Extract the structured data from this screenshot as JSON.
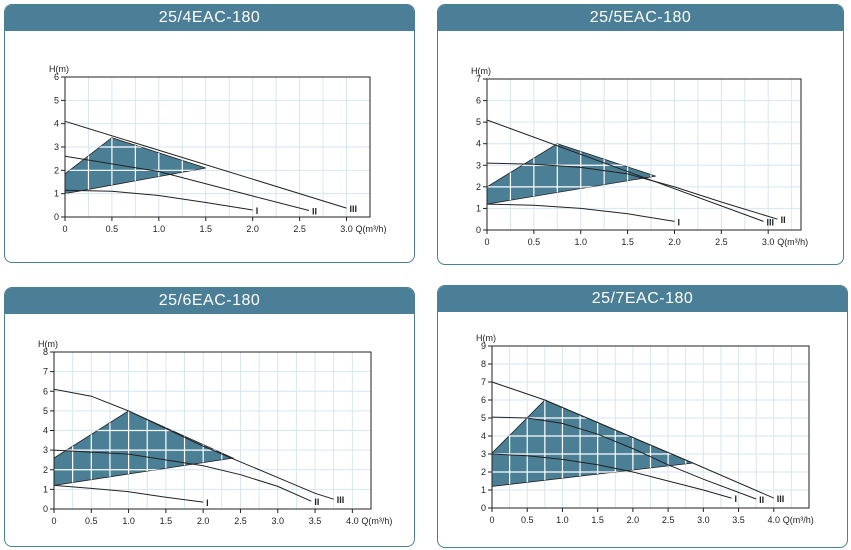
{
  "chart_data": [
    {
      "type": "line",
      "title": "25/4EAC-180",
      "ylabel": "H(m)",
      "xlabel": "Q(m³/h)",
      "xlim": [
        0,
        3.25
      ],
      "ylim": [
        0,
        6
      ],
      "xticks": [
        "0",
        "0.5",
        "1.0",
        "1.5",
        "2.0",
        "2.5",
        "3.0"
      ],
      "yticks": [
        "0",
        "1",
        "2",
        "3",
        "4",
        "5",
        "6"
      ],
      "series": [
        {
          "name": "I",
          "points": [
            [
              0,
              1.15
            ],
            [
              0.5,
              1.1
            ],
            [
              1.0,
              0.92
            ],
            [
              1.5,
              0.62
            ],
            [
              2.0,
              0.3
            ]
          ]
        },
        {
          "name": "II",
          "points": [
            [
              0,
              2.6
            ],
            [
              1.0,
              1.95
            ],
            [
              2.0,
              0.9
            ],
            [
              2.6,
              0.28
            ]
          ]
        },
        {
          "name": "III",
          "points": [
            [
              0,
              4.1
            ],
            [
              3.0,
              0.38
            ]
          ]
        }
      ],
      "region": [
        [
          0,
          1.0
        ],
        [
          0,
          1.85
        ],
        [
          0.5,
          3.4
        ],
        [
          1.5,
          2.1
        ]
      ]
    },
    {
      "type": "line",
      "title": "25/5EAC-180",
      "ylabel": "H(m)",
      "xlabel": "Q(m³/h)",
      "xlim": [
        0,
        3.35
      ],
      "ylim": [
        0,
        7
      ],
      "xticks": [
        "0",
        "0.5",
        "1.0",
        "1.5",
        "2.0",
        "2.5",
        "3.0"
      ],
      "yticks": [
        "0",
        "1",
        "2",
        "3",
        "4",
        "5",
        "6",
        "7"
      ],
      "series": [
        {
          "name": "I",
          "points": [
            [
              0,
              1.2
            ],
            [
              0.5,
              1.15
            ],
            [
              1.0,
              1.0
            ],
            [
              1.5,
              0.75
            ],
            [
              2.0,
              0.4
            ]
          ]
        },
        {
          "name": "II",
          "points": [
            [
              0,
              3.1
            ],
            [
              0.5,
              3.05
            ],
            [
              1.0,
              2.9
            ],
            [
              1.5,
              2.6
            ],
            [
              2.0,
              2.0
            ],
            [
              2.5,
              1.3
            ],
            [
              3.1,
              0.5
            ]
          ]
        },
        {
          "name": "III",
          "points": [
            [
              0,
              5.1
            ],
            [
              2.95,
              0.4
            ]
          ]
        }
      ],
      "region": [
        [
          0,
          1.2
        ],
        [
          0,
          2.0
        ],
        [
          0.75,
          4.0
        ],
        [
          1.8,
          2.5
        ]
      ]
    },
    {
      "type": "line",
      "title": "25/6EAC-180",
      "ylabel": "H(m)",
      "xlabel": "Q(m³/h)",
      "xlim": [
        0,
        4.25
      ],
      "ylim": [
        0,
        8
      ],
      "xticks": [
        "0",
        "0.5",
        "1.0",
        "1.5",
        "2.0",
        "2.5",
        "3.0",
        "3.5",
        "4.0"
      ],
      "yticks": [
        "0",
        "1",
        "2",
        "3",
        "4",
        "5",
        "6",
        "7",
        "8"
      ],
      "series": [
        {
          "name": "I",
          "points": [
            [
              0,
              1.2
            ],
            [
              0.5,
              1.05
            ],
            [
              1.0,
              0.88
            ],
            [
              1.5,
              0.6
            ],
            [
              2.0,
              0.35
            ]
          ]
        },
        {
          "name": "II",
          "points": [
            [
              0,
              3.0
            ],
            [
              1.0,
              2.8
            ],
            [
              2.0,
              2.2
            ],
            [
              2.5,
              1.75
            ],
            [
              3.0,
              1.15
            ],
            [
              3.45,
              0.4
            ]
          ]
        },
        {
          "name": "III",
          "points": [
            [
              0,
              6.1
            ],
            [
              0.5,
              5.75
            ],
            [
              1.0,
              5.0
            ],
            [
              1.5,
              4.1
            ],
            [
              2.0,
              3.2
            ],
            [
              2.5,
              2.4
            ],
            [
              3.0,
              1.6
            ],
            [
              3.5,
              0.8
            ],
            [
              3.75,
              0.5
            ]
          ]
        }
      ],
      "region": [
        [
          0,
          1.2
        ],
        [
          0,
          2.6
        ],
        [
          1.0,
          5.0
        ],
        [
          2.4,
          2.6
        ]
      ]
    },
    {
      "type": "line",
      "title": "25/7EAC-180",
      "ylabel": "H(m)",
      "xlabel": "Q(m³/h)",
      "xlim": [
        0,
        4.5
      ],
      "ylim": [
        0,
        9
      ],
      "xticks": [
        "0",
        "0.5",
        "1.0",
        "1.5",
        "2.0",
        "2.5",
        "3.0",
        "3.5",
        "4.0"
      ],
      "yticks": [
        "0",
        "1",
        "2",
        "3",
        "4",
        "5",
        "6",
        "7",
        "8",
        "9"
      ],
      "series": [
        {
          "name": "I",
          "points": [
            [
              0,
              3.0
            ],
            [
              0.5,
              2.9
            ],
            [
              1.0,
              2.7
            ],
            [
              1.5,
              2.4
            ],
            [
              2.0,
              2.0
            ],
            [
              2.5,
              1.5
            ],
            [
              3.0,
              1.0
            ],
            [
              3.4,
              0.55
            ]
          ]
        },
        {
          "name": "II",
          "points": [
            [
              0,
              5.05
            ],
            [
              0.5,
              5.0
            ],
            [
              1.0,
              4.7
            ],
            [
              1.5,
              4.1
            ],
            [
              2.0,
              3.3
            ],
            [
              2.5,
              2.4
            ],
            [
              3.0,
              1.6
            ],
            [
              3.75,
              0.5
            ]
          ]
        },
        {
          "name": "III",
          "points": [
            [
              0,
              7.0
            ],
            [
              0.75,
              6.0
            ],
            [
              2.85,
              2.5
            ],
            [
              4.0,
              0.55
            ]
          ]
        }
      ],
      "region": [
        [
          0,
          1.2
        ],
        [
          0,
          3.05
        ],
        [
          0.75,
          6.0
        ],
        [
          2.85,
          2.5
        ]
      ]
    }
  ],
  "colors": {
    "header": "#4b7f97",
    "region": "#4a7f96",
    "grid": "#d6e6f2"
  }
}
